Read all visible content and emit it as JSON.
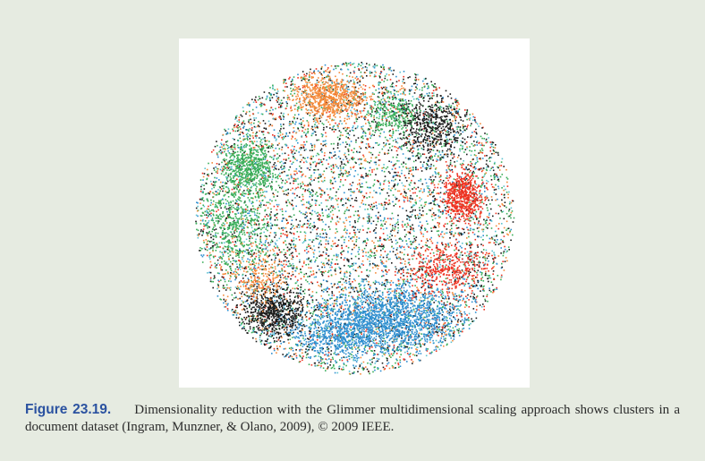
{
  "figure": {
    "label": "Figure 23.19.",
    "caption": "Dimensionality reduction with the Glimmer multidimensional scaling approach shows clusters in a document dataset (Ingram, Munzner, & Olano, 2009), © 2009 IEEE."
  },
  "colors": {
    "page_background": "#e6ebe1",
    "panel_background": "#ffffff",
    "label": "#2b52a0",
    "green": "#3aae5a",
    "orange": "#f48a3a",
    "red": "#ee3322",
    "blue": "#2f8fd0",
    "black": "#1a1a1a",
    "cyan": "#5ec4d0"
  }
}
